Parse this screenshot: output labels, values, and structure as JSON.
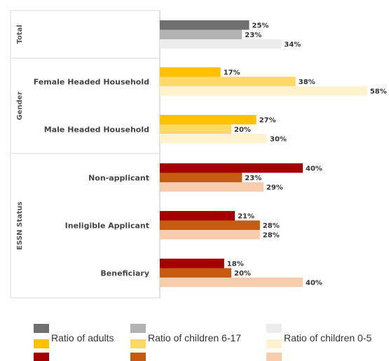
{
  "chart_data": {
    "type": "bar",
    "orientation": "horizontal",
    "xlim": [
      0,
      60
    ],
    "grid": false,
    "legend_position": "bottom",
    "groups": [
      {
        "label": "Total",
        "categories": [
          {
            "label": "",
            "values": [
              25,
              23,
              34
            ],
            "data_labels": [
              "25%",
              "23%",
              "34%"
            ],
            "palette": "gray"
          }
        ]
      },
      {
        "label": "Gender",
        "categories": [
          {
            "label": "Female Headed Household",
            "values": [
              17,
              38,
              58
            ],
            "data_labels": [
              "17%",
              "38%",
              "58%"
            ],
            "palette": "yellow"
          },
          {
            "label": "Male Headed Household",
            "values": [
              27,
              20,
              30
            ],
            "data_labels": [
              "27%",
              "20%",
              "30%"
            ],
            "palette": "yellow"
          }
        ]
      },
      {
        "label": "ESSN Status",
        "categories": [
          {
            "label": "Non-applicant",
            "values": [
              40,
              23,
              29
            ],
            "data_labels": [
              "40%",
              "23%",
              "29%"
            ],
            "palette": "red"
          },
          {
            "label": "Ineligible Applicant",
            "values": [
              21,
              28,
              28
            ],
            "data_labels": [
              "21%",
              "28%",
              "28%"
            ],
            "palette": "red"
          },
          {
            "label": "Beneficiary",
            "values": [
              18,
              20,
              40
            ],
            "data_labels": [
              "18%",
              "20%",
              "40%"
            ],
            "palette": "red"
          }
        ]
      }
    ],
    "series_names": [
      "Ratio of adults",
      "Ratio of children 6-17",
      "Ratio of children 0-5"
    ],
    "palettes": {
      "gray": [
        "#6f6f6f",
        "#b3b3b3",
        "#ececec"
      ],
      "yellow": [
        "#ffc000",
        "#ffd966",
        "#fff2cc"
      ],
      "red": [
        "#a50000",
        "#c55a11",
        "#f8cbad"
      ]
    }
  }
}
